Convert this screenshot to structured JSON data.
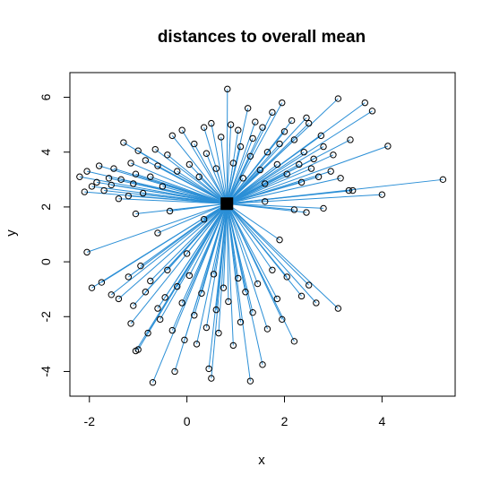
{
  "chart_data": {
    "type": "scatter",
    "title": "distances to overall mean",
    "xlabel": "x",
    "ylabel": "y",
    "xlim": [
      -2.4,
      5.5
    ],
    "ylim": [
      -4.9,
      6.9
    ],
    "xticks": [
      -2,
      0,
      2,
      4
    ],
    "yticks": [
      -4,
      -2,
      0,
      2,
      4,
      6
    ],
    "grid": false,
    "center": {
      "x": 0.82,
      "y": 2.12
    },
    "colors": {
      "segment": "#2b8fd6",
      "point": "#000000",
      "center": "#000000",
      "frame": "#000000"
    },
    "points": [
      [
        5.25,
        3.0
      ],
      [
        4.0,
        2.45
      ],
      [
        4.12,
        4.22
      ],
      [
        3.8,
        5.5
      ],
      [
        3.65,
        5.8
      ],
      [
        3.4,
        2.6
      ],
      [
        3.32,
        2.6
      ],
      [
        3.35,
        4.45
      ],
      [
        3.1,
        5.95
      ],
      [
        3.15,
        3.05
      ],
      [
        3.0,
        3.9
      ],
      [
        2.95,
        3.3
      ],
      [
        2.8,
        4.2
      ],
      [
        2.75,
        4.6
      ],
      [
        2.7,
        3.1
      ],
      [
        2.55,
        3.4
      ],
      [
        2.6,
        3.75
      ],
      [
        2.5,
        5.05
      ],
      [
        2.45,
        5.25
      ],
      [
        2.4,
        4.0
      ],
      [
        2.35,
        2.9
      ],
      [
        2.3,
        3.55
      ],
      [
        2.2,
        4.45
      ],
      [
        2.15,
        5.15
      ],
      [
        2.05,
        3.2
      ],
      [
        2.0,
        4.75
      ],
      [
        1.95,
        5.8
      ],
      [
        1.9,
        4.3
      ],
      [
        1.85,
        3.55
      ],
      [
        1.75,
        5.45
      ],
      [
        1.65,
        4.0
      ],
      [
        1.6,
        2.85
      ],
      [
        1.55,
        4.9
      ],
      [
        1.5,
        3.35
      ],
      [
        1.4,
        5.1
      ],
      [
        1.35,
        4.5
      ],
      [
        1.3,
        3.85
      ],
      [
        1.25,
        5.6
      ],
      [
        1.15,
        3.05
      ],
      [
        1.1,
        4.2
      ],
      [
        1.05,
        4.8
      ],
      [
        0.95,
        3.6
      ],
      [
        0.9,
        5.0
      ],
      [
        0.83,
        6.3
      ],
      [
        0.7,
        4.55
      ],
      [
        0.6,
        3.4
      ],
      [
        0.5,
        5.05
      ],
      [
        0.4,
        3.95
      ],
      [
        0.35,
        4.9
      ],
      [
        0.25,
        3.1
      ],
      [
        0.15,
        4.3
      ],
      [
        0.05,
        3.55
      ],
      [
        -0.1,
        4.8
      ],
      [
        -0.2,
        3.3
      ],
      [
        -0.3,
        4.6
      ],
      [
        -0.4,
        3.9
      ],
      [
        -0.5,
        2.75
      ],
      [
        -0.6,
        3.5
      ],
      [
        -0.65,
        4.1
      ],
      [
        -0.75,
        3.1
      ],
      [
        -0.85,
        3.7
      ],
      [
        -0.9,
        2.5
      ],
      [
        -1.0,
        4.05
      ],
      [
        -1.05,
        3.2
      ],
      [
        -1.1,
        2.85
      ],
      [
        -1.15,
        3.6
      ],
      [
        -1.2,
        2.4
      ],
      [
        -1.3,
        4.35
      ],
      [
        -1.35,
        3.0
      ],
      [
        -1.4,
        2.3
      ],
      [
        -1.5,
        3.4
      ],
      [
        -1.55,
        2.8
      ],
      [
        -1.6,
        3.05
      ],
      [
        -1.7,
        2.6
      ],
      [
        -1.8,
        3.5
      ],
      [
        -1.85,
        2.9
      ],
      [
        -1.95,
        2.75
      ],
      [
        -2.05,
        3.3
      ],
      [
        -2.1,
        2.55
      ],
      [
        -2.2,
        3.1
      ],
      [
        -1.05,
        1.75
      ],
      [
        -0.35,
        1.85
      ],
      [
        2.2,
        1.9
      ],
      [
        2.45,
        1.8
      ],
      [
        1.6,
        2.2
      ],
      [
        -2.05,
        0.35
      ],
      [
        -1.95,
        -0.95
      ],
      [
        -1.75,
        -0.75
      ],
      [
        -1.55,
        -1.2
      ],
      [
        -1.4,
        -1.35
      ],
      [
        -1.2,
        -0.55
      ],
      [
        -1.15,
        -2.25
      ],
      [
        -1.1,
        -1.6
      ],
      [
        -1.0,
        -3.2
      ],
      [
        -1.05,
        -3.25
      ],
      [
        -0.95,
        -0.15
      ],
      [
        -0.85,
        -1.1
      ],
      [
        -0.8,
        -2.6
      ],
      [
        -0.75,
        -0.7
      ],
      [
        -0.7,
        -4.4
      ],
      [
        -0.6,
        -1.7
      ],
      [
        -0.55,
        -2.1
      ],
      [
        -0.45,
        -1.3
      ],
      [
        -0.4,
        -0.3
      ],
      [
        -0.3,
        -2.5
      ],
      [
        -0.25,
        -4.0
      ],
      [
        -0.2,
        -0.9
      ],
      [
        -0.1,
        -1.5
      ],
      [
        -0.05,
        -2.85
      ],
      [
        0.05,
        -0.5
      ],
      [
        0.15,
        -1.95
      ],
      [
        0.2,
        -3.0
      ],
      [
        0.3,
        -1.15
      ],
      [
        0.4,
        -2.4
      ],
      [
        0.45,
        -3.9
      ],
      [
        0.5,
        -4.25
      ],
      [
        0.55,
        -0.45
      ],
      [
        0.6,
        -1.75
      ],
      [
        0.65,
        -2.6
      ],
      [
        0.75,
        -0.95
      ],
      [
        0.85,
        -1.45
      ],
      [
        0.95,
        -3.05
      ],
      [
        1.05,
        -0.6
      ],
      [
        1.1,
        -2.2
      ],
      [
        1.2,
        -1.1
      ],
      [
        1.3,
        -4.35
      ],
      [
        1.35,
        -1.85
      ],
      [
        1.45,
        -0.8
      ],
      [
        1.55,
        -3.75
      ],
      [
        1.65,
        -2.45
      ],
      [
        1.75,
        -0.3
      ],
      [
        1.85,
        -1.35
      ],
      [
        1.95,
        -2.1
      ],
      [
        2.05,
        -0.55
      ],
      [
        2.2,
        -2.9
      ],
      [
        2.35,
        -1.25
      ],
      [
        2.5,
        -0.85
      ],
      [
        2.65,
        -1.5
      ],
      [
        3.1,
        -1.7
      ],
      [
        -0.6,
        1.05
      ],
      [
        0.0,
        0.3
      ],
      [
        0.35,
        1.55
      ],
      [
        1.9,
        0.8
      ],
      [
        2.8,
        1.95
      ]
    ]
  }
}
